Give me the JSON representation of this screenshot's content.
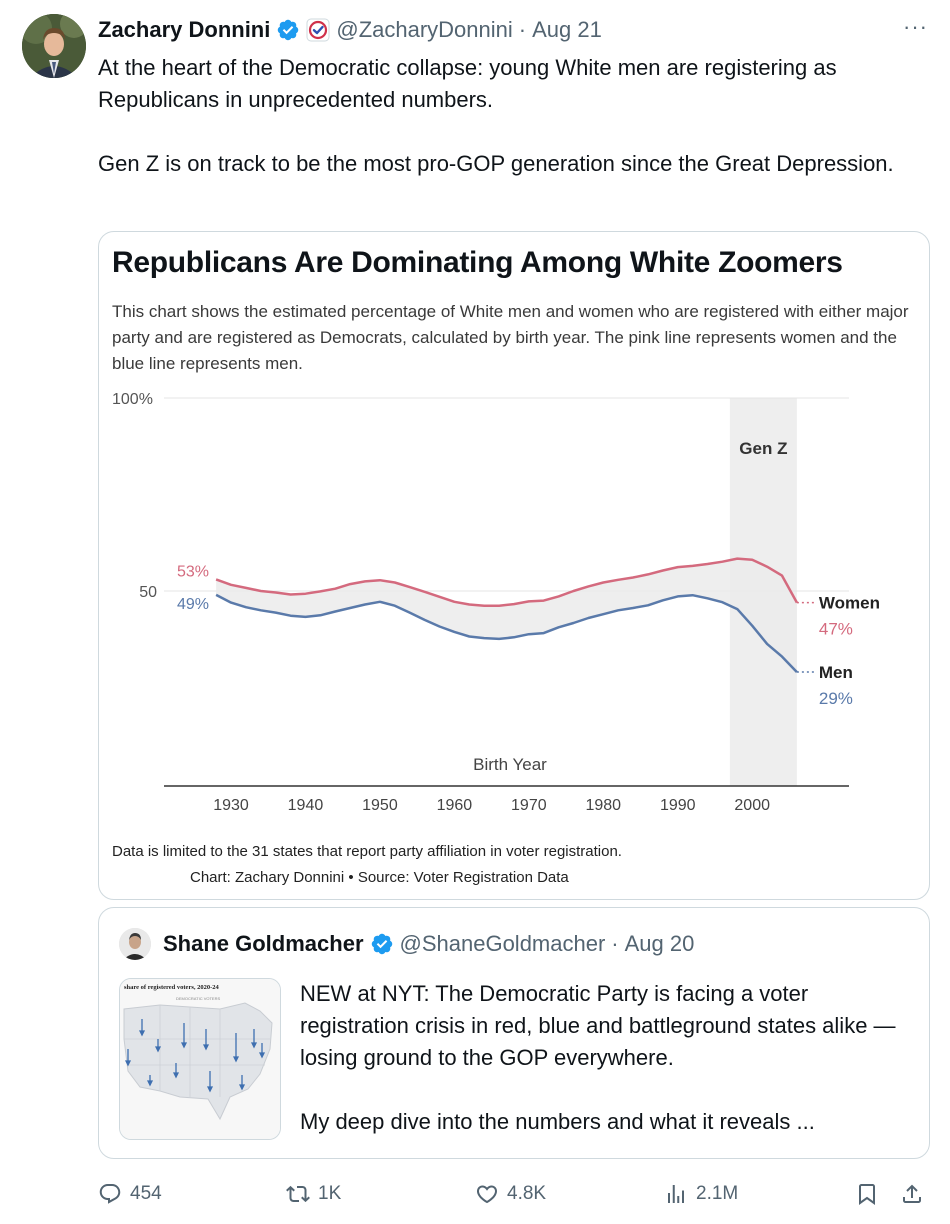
{
  "tweet": {
    "author_name": "Zachary Donnini",
    "handle": "@ZacharyDonnini",
    "date": "Aug 21",
    "text_p1": "At the heart of the Democratic collapse: young White men are registering as Republicans in unprecedented numbers.",
    "text_p2": "Gen Z is on track to be the most pro-GOP generation since the Great Depression.",
    "more_icon": "more-icon",
    "verified_icon": "verified-badge-icon"
  },
  "chart": {
    "title": "Republicans Are Dominating Among White Zoomers",
    "subtitle": "This chart shows the estimated percentage of White men and women who are registered with either major party and are registered as Democrats, calculated by birth year. The pink line represents women and the blue line represents men.",
    "note": "Data is limited to the 31 states that report party affiliation in voter registration.",
    "credit": "Chart: Zachary Donnini • Source: Voter Registration Data"
  },
  "chart_data": {
    "type": "line",
    "xlabel": "Birth Year",
    "ylabel": "",
    "xlim": [
      1921,
      2013
    ],
    "ylim": [
      0,
      100
    ],
    "x_ticks": [
      "1930",
      "1940",
      "1950",
      "1960",
      "1970",
      "1980",
      "1990",
      "2000"
    ],
    "y_ticks": [
      {
        "value": 100,
        "label": "100%"
      },
      {
        "value": 50,
        "label": "50"
      }
    ],
    "shaded_region": {
      "label": "Gen Z",
      "from": 1997,
      "to": 2006
    },
    "colors": {
      "women": "#d46a7e",
      "men": "#5a7aaa",
      "fill": "#ebebeb",
      "genz": "#eeeeee"
    },
    "start_labels": {
      "women": "53%",
      "men": "49%"
    },
    "series": [
      {
        "name": "Women",
        "end_label": "47%",
        "points": [
          [
            1928,
            53
          ],
          [
            1930,
            51.6
          ],
          [
            1932,
            50.8
          ],
          [
            1934,
            50
          ],
          [
            1936,
            49.6
          ],
          [
            1938,
            49.1
          ],
          [
            1940,
            49.3
          ],
          [
            1942,
            49.9
          ],
          [
            1944,
            50.6
          ],
          [
            1946,
            51.8
          ],
          [
            1948,
            52.5
          ],
          [
            1950,
            52.8
          ],
          [
            1952,
            52.2
          ],
          [
            1954,
            51
          ],
          [
            1956,
            49.8
          ],
          [
            1958,
            48.5
          ],
          [
            1960,
            47.2
          ],
          [
            1962,
            46.5
          ],
          [
            1964,
            46.2
          ],
          [
            1966,
            46.2
          ],
          [
            1968,
            46.6
          ],
          [
            1970,
            47.3
          ],
          [
            1972,
            47.5
          ],
          [
            1974,
            48.6
          ],
          [
            1976,
            50
          ],
          [
            1978,
            51.2
          ],
          [
            1980,
            52.2
          ],
          [
            1982,
            52.9
          ],
          [
            1984,
            53.5
          ],
          [
            1986,
            54.3
          ],
          [
            1988,
            55.3
          ],
          [
            1990,
            56.2
          ],
          [
            1992,
            56.5
          ],
          [
            1994,
            57
          ],
          [
            1996,
            57.6
          ],
          [
            1998,
            58.4
          ],
          [
            2000,
            58.1
          ],
          [
            2002,
            56.3
          ],
          [
            2004,
            54
          ],
          [
            2006,
            47
          ]
        ]
      },
      {
        "name": "Men",
        "end_label": "29%",
        "points": [
          [
            1928,
            49
          ],
          [
            1930,
            47
          ],
          [
            1932,
            45.8
          ],
          [
            1934,
            45
          ],
          [
            1936,
            44.4
          ],
          [
            1938,
            43.6
          ],
          [
            1940,
            43.3
          ],
          [
            1942,
            43.7
          ],
          [
            1944,
            44.7
          ],
          [
            1946,
            45.6
          ],
          [
            1948,
            46.5
          ],
          [
            1950,
            47.2
          ],
          [
            1952,
            46.2
          ],
          [
            1954,
            44.4
          ],
          [
            1956,
            42.5
          ],
          [
            1958,
            40.8
          ],
          [
            1960,
            39.4
          ],
          [
            1962,
            38.2
          ],
          [
            1964,
            37.8
          ],
          [
            1966,
            37.6
          ],
          [
            1968,
            38
          ],
          [
            1970,
            38.8
          ],
          [
            1972,
            39.1
          ],
          [
            1974,
            40.6
          ],
          [
            1976,
            41.7
          ],
          [
            1978,
            43
          ],
          [
            1980,
            44
          ],
          [
            1982,
            45
          ],
          [
            1984,
            45.6
          ],
          [
            1986,
            46.3
          ],
          [
            1988,
            47.6
          ],
          [
            1990,
            48.6
          ],
          [
            1992,
            48.9
          ],
          [
            1994,
            48.1
          ],
          [
            1996,
            47.1
          ],
          [
            1998,
            45.3
          ],
          [
            2000,
            41
          ],
          [
            2002,
            36.3
          ],
          [
            2004,
            33
          ],
          [
            2006,
            29
          ]
        ]
      }
    ]
  },
  "quote": {
    "author_name": "Shane Goldmacher",
    "handle": "@ShaneGoldmacher",
    "date": "Aug 20",
    "text_p1": "NEW at NYT: The Democratic Party is facing a voter registration crisis in red, blue and battleground states alike — losing ground to the GOP everywhere.",
    "text_p2": "My deep dive into the numbers and what it reveals ...",
    "thumb_title": "share of registered voters, 2020-24",
    "thumb_sub": "DEMOCRATIC VOTERS"
  },
  "actions": {
    "replies": "454",
    "retweets": "1K",
    "likes": "4.8K",
    "views": "2.1M"
  }
}
